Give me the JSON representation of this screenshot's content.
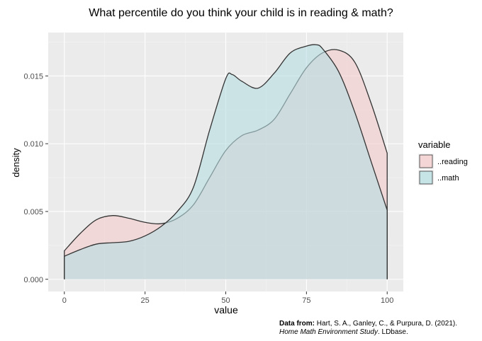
{
  "title": "What percentile do you think your child is in reading & math?",
  "credit": {
    "prefix": "Data from:",
    "authors": "Hart, S. A., Ganley, C., & Purpura, D. (2021).",
    "work": "Home Math Environment Study",
    "publisher": ". LDbase."
  },
  "colors": {
    "panel": "#ebebeb",
    "grid_major": "#ffffff",
    "grid_minor": "#f5f5f5",
    "outline": "#333333"
  },
  "chart_data": {
    "type": "area",
    "subtype": "density",
    "xlabel": "value",
    "ylabel": "density",
    "xlim": [
      -5,
      105
    ],
    "ylim": [
      -0.0009,
      0.0182
    ],
    "xticks": [
      0,
      25,
      50,
      75,
      100
    ],
    "xtick_labels": [
      "0",
      "25",
      "50",
      "75",
      "100"
    ],
    "yticks": [
      0,
      0.005,
      0.01,
      0.015
    ],
    "ytick_labels": [
      "0.000",
      "0.005",
      "0.010",
      "0.015"
    ],
    "grid": true,
    "legend": {
      "title": "variable",
      "position": "right"
    },
    "series": [
      {
        "name": "..reading",
        "color": "#f4cccc",
        "opacity": 0.6,
        "x": [
          0,
          5,
          10,
          15,
          20,
          25,
          30,
          35,
          40,
          45,
          50,
          55,
          60,
          65,
          70,
          75,
          80,
          85,
          90,
          95,
          100
        ],
        "y": [
          0.0021,
          0.0034,
          0.0044,
          0.0047,
          0.0045,
          0.0042,
          0.0041,
          0.0045,
          0.0055,
          0.0075,
          0.0095,
          0.0106,
          0.011,
          0.0118,
          0.0137,
          0.0156,
          0.0167,
          0.0169,
          0.016,
          0.013,
          0.0093
        ]
      },
      {
        "name": "..math",
        "color": "#b7dde2",
        "opacity": 0.6,
        "x": [
          0,
          5,
          10,
          15,
          20,
          25,
          30,
          35,
          40,
          45,
          50,
          52,
          55,
          60,
          65,
          70,
          75,
          78,
          80,
          85,
          90,
          95,
          100
        ],
        "y": [
          0.0017,
          0.0022,
          0.0026,
          0.0027,
          0.0028,
          0.0032,
          0.0039,
          0.005,
          0.0068,
          0.011,
          0.0148,
          0.0151,
          0.0146,
          0.0141,
          0.0152,
          0.0167,
          0.0172,
          0.0173,
          0.017,
          0.0153,
          0.0123,
          0.0087,
          0.0051
        ]
      }
    ]
  }
}
